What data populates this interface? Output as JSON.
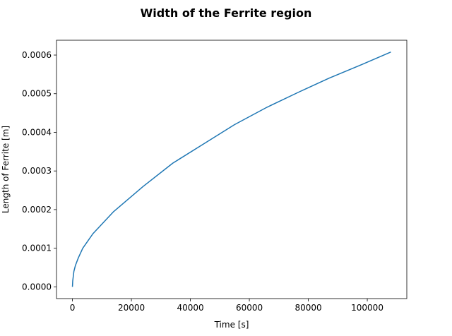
{
  "chart_data": {
    "type": "line",
    "title": "Width of the Ferrite region",
    "xlabel": "Time [s]",
    "ylabel": "Length of Ferrite [m]",
    "color": "#1f77b4",
    "x": [
      0,
      100,
      500,
      1000,
      2000,
      3500,
      7000,
      14000,
      24000,
      34000,
      44500,
      55000,
      66000,
      77000,
      87000,
      98000,
      108000
    ],
    "values": [
      0.0,
      1.5e-05,
      4e-05,
      5.5e-05,
      7.5e-05,
      0.0001,
      0.000138,
      0.000195,
      0.00026,
      0.00032,
      0.00037,
      0.00042,
      0.000465,
      0.000505,
      0.00054,
      0.000575,
      0.000608
    ],
    "xlim": [
      -5400,
      113400
    ],
    "ylim": [
      -3.04e-05,
      0.0006384
    ],
    "xticks": [
      0,
      20000,
      40000,
      60000,
      80000,
      100000
    ],
    "yticks": [
      {
        "value": 0,
        "label": "0.0000"
      },
      {
        "value": 0.0001,
        "label": "0.0001"
      },
      {
        "value": 0.0002,
        "label": "0.0002"
      },
      {
        "value": 0.0003,
        "label": "0.0003"
      },
      {
        "value": 0.0004,
        "label": "0.0004"
      },
      {
        "value": 0.0005,
        "label": "0.0005"
      },
      {
        "value": 0.0006,
        "label": "0.0006"
      }
    ],
    "grid": false
  }
}
